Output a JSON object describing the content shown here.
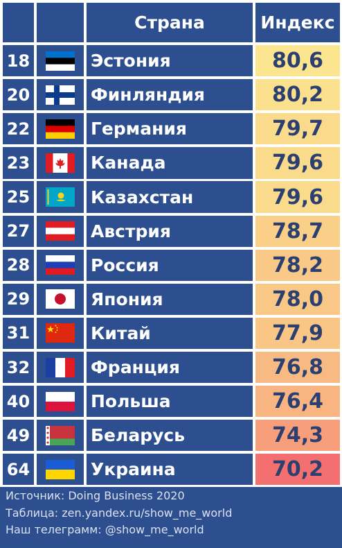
{
  "header": {
    "country": "Страна",
    "index": "Индекс"
  },
  "chart_data": {
    "type": "table",
    "columns": [
      "Страна",
      "Индекс"
    ],
    "rows": [
      {
        "rank": "18",
        "country": "Эстония",
        "flag": "estonia-flag",
        "index": "80,6",
        "value": 80.6
      },
      {
        "rank": "20",
        "country": "Финляндия",
        "flag": "finland-flag",
        "index": "80,2",
        "value": 80.2
      },
      {
        "rank": "22",
        "country": "Германия",
        "flag": "germany-flag",
        "index": "79,7",
        "value": 79.7
      },
      {
        "rank": "23",
        "country": "Канада",
        "flag": "canada-flag",
        "index": "79,6",
        "value": 79.6
      },
      {
        "rank": "25",
        "country": "Казахстан",
        "flag": "kazakhstan-flag",
        "index": "79,6",
        "value": 79.6
      },
      {
        "rank": "27",
        "country": "Австрия",
        "flag": "austria-flag",
        "index": "78,7",
        "value": 78.7
      },
      {
        "rank": "28",
        "country": "Россия",
        "flag": "russia-flag",
        "index": "78,2",
        "value": 78.2
      },
      {
        "rank": "29",
        "country": "Япония",
        "flag": "japan-flag",
        "index": "78,0",
        "value": 78.0
      },
      {
        "rank": "31",
        "country": "Китай",
        "flag": "china-flag",
        "index": "77,9",
        "value": 77.9
      },
      {
        "rank": "32",
        "country": "Франция",
        "flag": "france-flag",
        "index": "76,8",
        "value": 76.8
      },
      {
        "rank": "40",
        "country": "Польша",
        "flag": "poland-flag",
        "index": "76,4",
        "value": 76.4
      },
      {
        "rank": "49",
        "country": "Беларусь",
        "flag": "belarus-flag",
        "index": "74,3",
        "value": 74.3
      },
      {
        "rank": "64",
        "country": "Украина",
        "flag": "ukraine-flag",
        "index": "70,2",
        "value": 70.2
      }
    ]
  },
  "footer": {
    "source": "Источник: Doing Business 2020",
    "table": "Таблица: zen.yandex.ru/show_me_world",
    "telegram": "Наш телеграмм: @show_me_world"
  },
  "colors": {
    "header_bg": "#2e4f8f",
    "index_high": "#fbe58e",
    "index_low": "#f46f6f"
  }
}
